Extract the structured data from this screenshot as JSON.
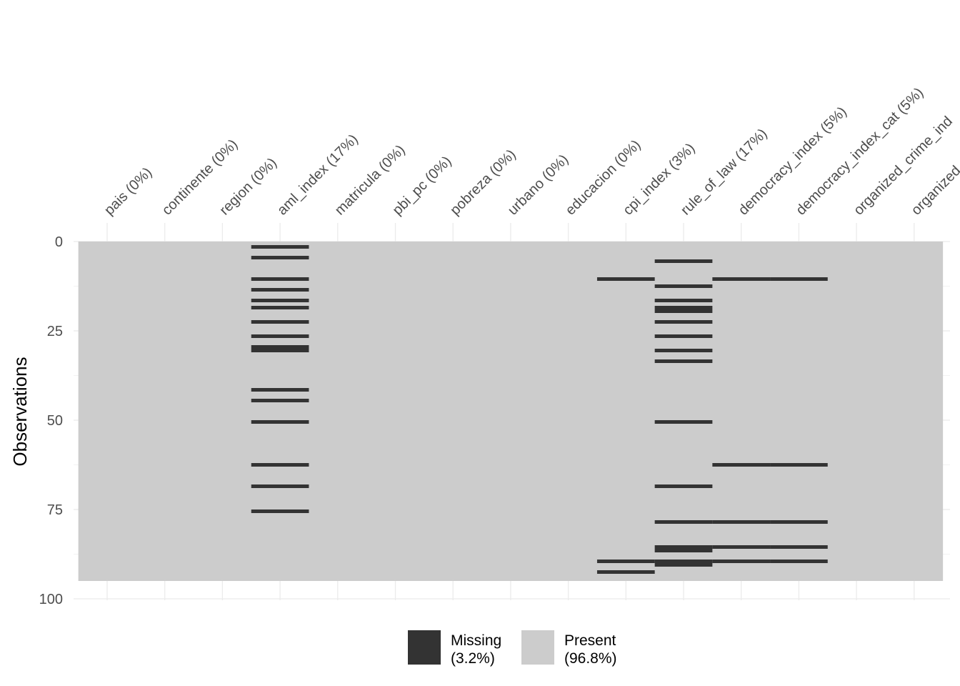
{
  "chart_data": {
    "type": "heatmap",
    "title": "",
    "xlabel": "",
    "ylabel": "Observations",
    "n_obs": 95,
    "ylim": [
      0,
      100
    ],
    "y_ticks": [
      0,
      25,
      50,
      75,
      100
    ],
    "columns": [
      {
        "name": "pais",
        "label": "pais (0%)",
        "missing_rows": []
      },
      {
        "name": "continente",
        "label": "continente (0%)",
        "missing_rows": []
      },
      {
        "name": "region",
        "label": "region (0%)",
        "missing_rows": []
      },
      {
        "name": "aml_index",
        "label": "aml_index (17%)",
        "missing_rows": [
          1,
          4,
          10,
          13,
          16,
          18,
          22,
          26,
          29,
          30,
          41,
          44,
          50,
          62,
          68,
          75
        ]
      },
      {
        "name": "matricula",
        "label": "matricula (0%)",
        "missing_rows": []
      },
      {
        "name": "pbi_pc",
        "label": "pbi_pc (0%)",
        "missing_rows": []
      },
      {
        "name": "pobreza",
        "label": "pobreza (0%)",
        "missing_rows": []
      },
      {
        "name": "urbano",
        "label": "urbano (0%)",
        "missing_rows": []
      },
      {
        "name": "educacion",
        "label": "educacion (0%)",
        "missing_rows": []
      },
      {
        "name": "cpi_index",
        "label": "cpi_index (3%)",
        "missing_rows": [
          10,
          89,
          92
        ]
      },
      {
        "name": "rule_of_law",
        "label": "rule_of_law (17%)",
        "missing_rows": [
          5,
          12,
          16,
          18,
          19,
          22,
          26,
          30,
          33,
          50,
          68,
          78,
          85,
          86,
          89,
          90
        ]
      },
      {
        "name": "democracy_index",
        "label": "democracy_index (5%)",
        "missing_rows": [
          10,
          62,
          78,
          85,
          89
        ]
      },
      {
        "name": "democracy_index_cat",
        "label": "democracy_index_cat (5%)",
        "missing_rows": [
          10,
          62,
          78,
          85,
          89
        ]
      },
      {
        "name": "organized_crime_ind",
        "label": "organized_crime_ind",
        "missing_rows": []
      },
      {
        "name": "organized",
        "label": "organized",
        "missing_rows": []
      }
    ],
    "legend": {
      "placement": "bottom",
      "items": [
        {
          "name": "Missing",
          "pct": "(3.2%)",
          "color": "#333333"
        },
        {
          "name": "Present",
          "pct": "(96.8%)",
          "color": "#cccccc"
        }
      ]
    },
    "grid": true
  }
}
